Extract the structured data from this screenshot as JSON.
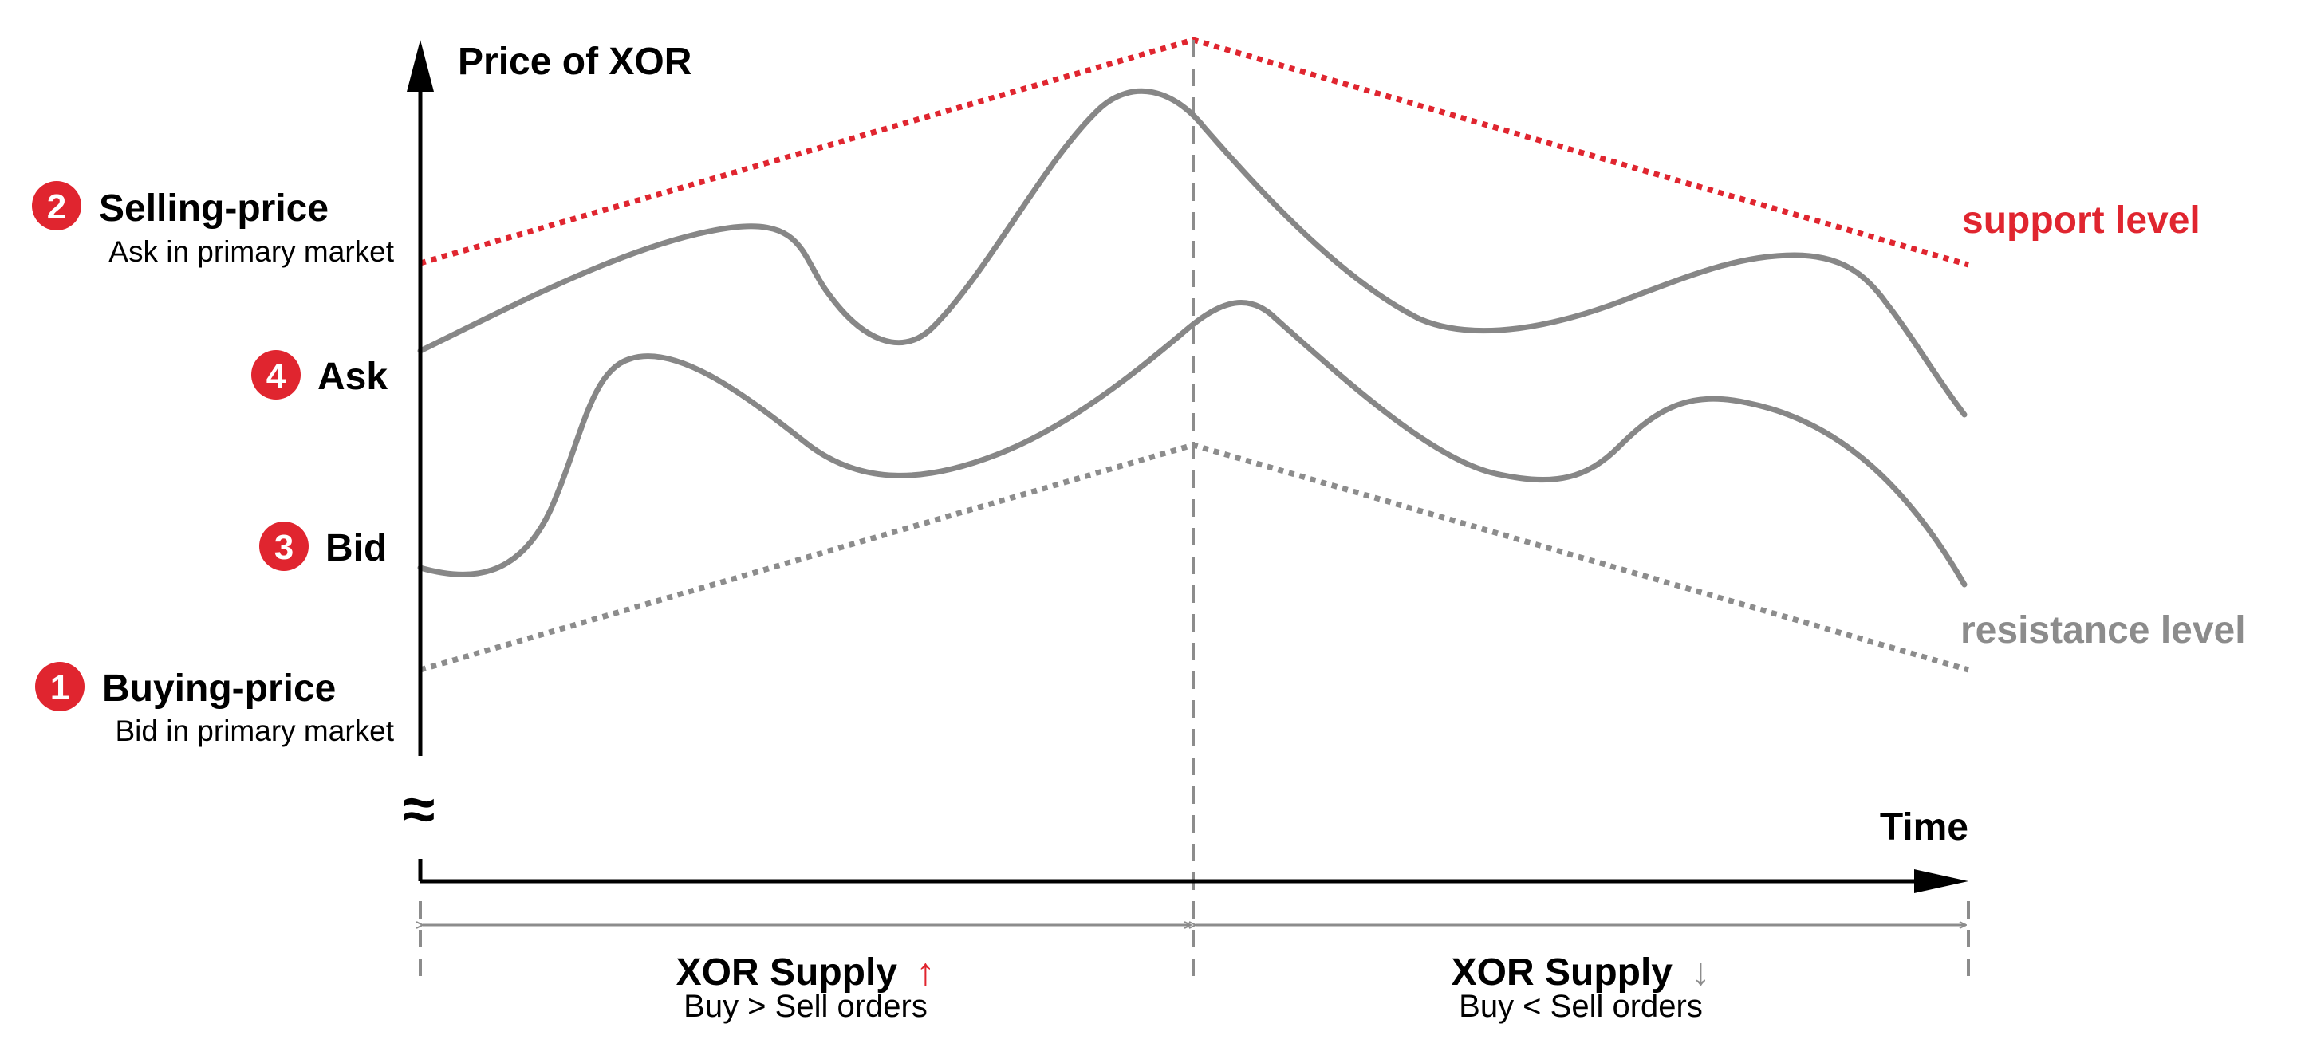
{
  "colors": {
    "accent_red": "#e0252f",
    "curve_gray": "#878787",
    "dashed_gray": "#8c8c8c",
    "axis": "#000000",
    "text": "#000000"
  },
  "axes": {
    "y_label": "Price of XOR",
    "x_label": "Time",
    "axis_break_symbol": "≈"
  },
  "levels": {
    "support_label": "support level",
    "resistance_label": "resistance level"
  },
  "price_points": [
    {
      "number": "2",
      "title": "Selling-price",
      "subtitle": "Ask in primary market"
    },
    {
      "number": "4",
      "title": "Ask",
      "subtitle": ""
    },
    {
      "number": "3",
      "title": "Bid",
      "subtitle": ""
    },
    {
      "number": "1",
      "title": "Buying-price",
      "subtitle": "Bid in primary market"
    }
  ],
  "phases": [
    {
      "title": "XOR Supply",
      "arrow": "↑",
      "arrow_color": "#e0252f",
      "subtitle": "Buy > Sell orders"
    },
    {
      "title": "XOR Supply",
      "arrow": "↓",
      "arrow_color": "#8c8c8c",
      "subtitle": "Buy < Sell orders"
    }
  ]
}
